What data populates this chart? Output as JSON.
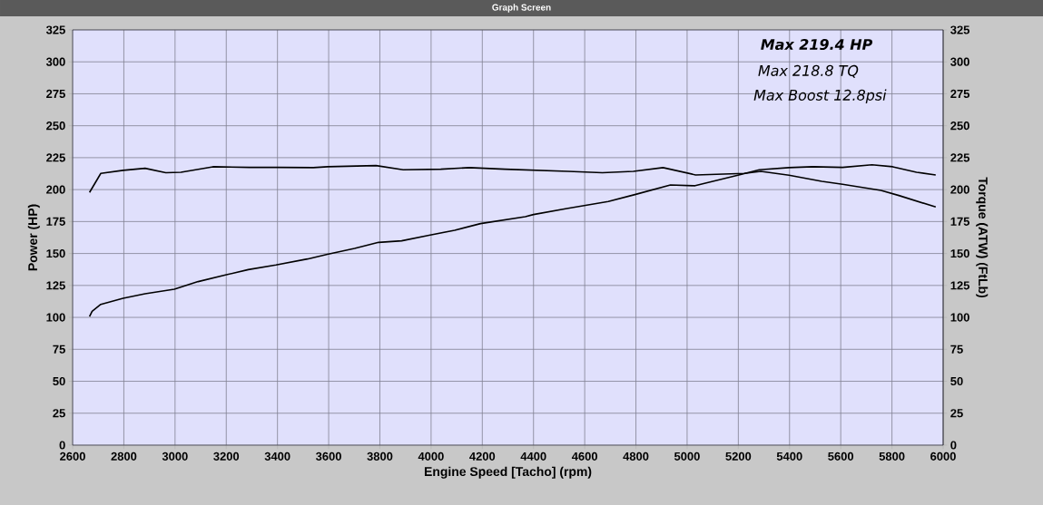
{
  "chart_data": {
    "type": "line",
    "title": "Graph Screen",
    "xlabel": "Engine Speed [Tacho] (rpm)",
    "ylabel": "Power (HP)",
    "y2label": "Torque (ATW) (FtLb)",
    "annotations": [
      "Max 219.4 HP",
      "Max 218.8 TQ",
      "Max Boost 12.8psi"
    ],
    "xlim": [
      2600,
      6000
    ],
    "xticks": [
      2600,
      2800,
      3000,
      3200,
      3400,
      3600,
      3800,
      4000,
      4200,
      4400,
      4600,
      4800,
      5000,
      5200,
      5400,
      5600,
      5800,
      6000
    ],
    "ylim": [
      0,
      325
    ],
    "yticks": [
      0,
      25,
      50,
      75,
      100,
      125,
      150,
      175,
      200,
      225,
      250,
      275,
      300,
      325
    ],
    "y2lim": [
      0,
      325
    ],
    "y2ticks": [
      0,
      25,
      50,
      75,
      100,
      125,
      150,
      175,
      200,
      225,
      250,
      275,
      300,
      325
    ],
    "grid": true,
    "series": [
      {
        "color": "#000000",
        "x": [
          2666,
          2676,
          2710,
          2797,
          2883,
          2997,
          3090,
          3197,
          3286,
          3394,
          3517,
          3595,
          3701,
          3795,
          3885,
          3992,
          4092,
          4193,
          4368,
          4400,
          4530,
          4692,
          4796,
          4935,
          5028,
          5202,
          5282,
          5398,
          5491,
          5607,
          5722,
          5803,
          5896,
          5971
        ],
        "values": [
          100.7,
          104.8,
          110.2,
          114.9,
          118.5,
          122,
          128,
          133.2,
          137.4,
          141,
          145.7,
          149.3,
          154,
          158.7,
          159.9,
          164.2,
          168.2,
          173.4,
          178.8,
          180.5,
          185.2,
          190.7,
          196.1,
          203.7,
          203,
          211.5,
          215.5,
          217.2,
          217.9,
          217.4,
          219.4,
          217.9,
          213.6,
          211.5
        ]
      },
      {
        "color": "#000000",
        "axis": "y2",
        "x": [
          2666,
          2710,
          2797,
          2883,
          2964,
          3023,
          3148,
          3290,
          3401,
          3540,
          3597,
          3785,
          3891,
          4038,
          4150,
          4288,
          4535,
          4669,
          4790,
          4906,
          5033,
          5224,
          5288,
          5398,
          5526,
          5607,
          5757,
          5827,
          5971
        ],
        "values": [
          197.8,
          212.7,
          215.1,
          216.7,
          213.2,
          213.6,
          217.9,
          217.4,
          217.4,
          217.2,
          217.9,
          218.8,
          215.5,
          216,
          217.2,
          216,
          214.3,
          213.2,
          214.3,
          217.2,
          211.5,
          212.7,
          214.3,
          211.3,
          206.5,
          204.2,
          199.4,
          195.4,
          186.4
        ]
      }
    ]
  }
}
